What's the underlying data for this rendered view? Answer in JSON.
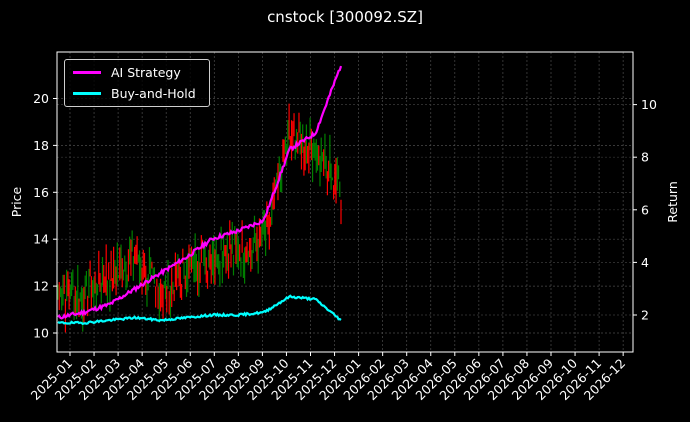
{
  "title": "cnstock [300092.SZ]",
  "legend": {
    "items": [
      {
        "label": "AI Strategy",
        "color": "#ff00ff"
      },
      {
        "label": "Buy-and-Hold",
        "color": "#00ffff"
      }
    ]
  },
  "axes": {
    "left_label": "Price",
    "right_label": "Return",
    "left_ticks": [
      "10",
      "12",
      "14",
      "16",
      "18",
      "20"
    ],
    "right_ticks": [
      "2",
      "4",
      "6",
      "8",
      "10"
    ],
    "x_ticks": [
      "2025-01",
      "2025-02",
      "2025-03",
      "2025-04",
      "2025-05",
      "2025-06",
      "2025-07",
      "2025-08",
      "2025-09",
      "2025-10",
      "2025-11",
      "2025-12",
      "2026-01",
      "2026-02",
      "2026-03",
      "2026-04",
      "2026-05",
      "2026-06",
      "2026-07",
      "2026-08",
      "2026-09",
      "2026-10",
      "2026-11",
      "2026-12"
    ]
  },
  "colors": {
    "background": "#000000",
    "up_candle": "#008000",
    "down_candle": "#ff0000",
    "grid": "#555555",
    "frame": "#ffffff"
  },
  "chart_data": {
    "type": "line",
    "title": "cnstock [300092.SZ]",
    "xlabel": "",
    "ylabel": "Price",
    "ylabel_right": "Return",
    "ylim": [
      9.2,
      21.9
    ],
    "ylim_right": [
      1.3,
      11.9
    ],
    "grid": true,
    "legend_position": "upper left",
    "x": [
      "2025-01",
      "2025-02",
      "2025-03",
      "2025-04",
      "2025-05",
      "2025-06",
      "2025-07",
      "2025-08",
      "2025-09",
      "2025-10",
      "2025-11",
      "2025-12"
    ],
    "series": [
      {
        "name": "Price (candles)",
        "axis": "left",
        "type": "candlestick",
        "values": [
          11.8,
          11.6,
          12.5,
          13.2,
          11.5,
          12.6,
          13.3,
          13.6,
          13.8,
          18.5,
          17.8,
          16.3
        ]
      },
      {
        "name": "AI Strategy",
        "axis": "right",
        "color": "#ff00ff",
        "values": [
          1.9,
          2.1,
          2.4,
          3.0,
          3.6,
          4.2,
          4.9,
          5.2,
          5.6,
          8.3,
          8.9,
          11.5
        ]
      },
      {
        "name": "Buy-and-Hold",
        "axis": "right",
        "color": "#00ffff",
        "values": [
          1.7,
          1.7,
          1.8,
          1.9,
          1.8,
          1.9,
          2.0,
          2.0,
          2.1,
          2.7,
          2.6,
          1.8
        ]
      }
    ]
  }
}
